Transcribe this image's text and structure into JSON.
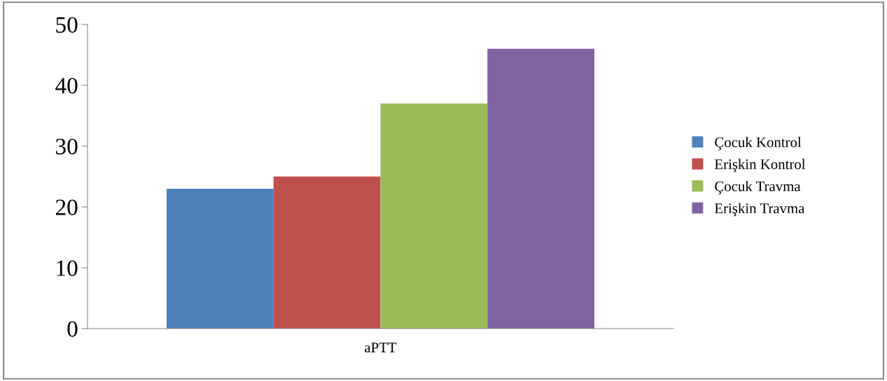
{
  "chart_data": {
    "type": "bar",
    "categories": [
      "aPTT"
    ],
    "series": [
      {
        "name": "Çocuk Kontrol",
        "color": "#4f81bd",
        "values": [
          23
        ]
      },
      {
        "name": "Erişkin Kontrol",
        "color": "#c0504d",
        "values": [
          25
        ]
      },
      {
        "name": "Çocuk Travma",
        "color": "#9bbb59",
        "values": [
          37
        ]
      },
      {
        "name": "Erişkin Travma",
        "color": "#8064a2",
        "values": [
          46
        ]
      }
    ],
    "ylim": [
      0,
      50
    ],
    "yticks": [
      0,
      10,
      20,
      30,
      40,
      50
    ],
    "grid": false,
    "legend": "right"
  }
}
